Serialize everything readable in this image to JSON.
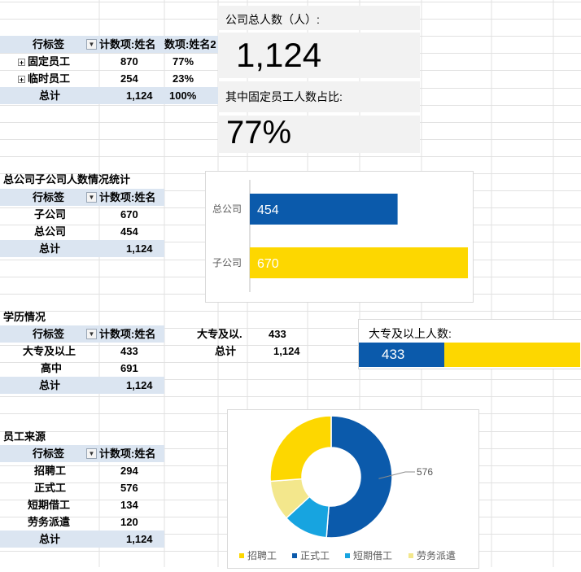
{
  "colors": {
    "blue": "#0b5aab",
    "yellow": "#fdd700",
    "sky": "#17a4e0",
    "paleyellow": "#f3e78c",
    "grid": "#e1e1e1"
  },
  "pivot1": {
    "headers": [
      "行标签",
      "计数项:姓名",
      "数项:姓名2"
    ],
    "rows": [
      [
        "固定员工",
        "870",
        "77%"
      ],
      [
        "临时员工",
        "254",
        "23%"
      ]
    ],
    "total": [
      "总计",
      "1,124",
      "100%"
    ]
  },
  "kpi": {
    "total_label": "公司总人数（人）:",
    "total_value": "1,124",
    "ratio_label": "其中固定员工人数占比:",
    "ratio_value": "77%"
  },
  "section2": {
    "title": "总公司子公司人数情况统计",
    "headers": [
      "行标签",
      "计数项:姓名"
    ],
    "rows": [
      [
        "子公司",
        "670"
      ],
      [
        "总公司",
        "454"
      ]
    ],
    "total": [
      "总计",
      "1,124"
    ]
  },
  "bar_chart": {
    "chart_data": {
      "type": "bar",
      "orientation": "horizontal",
      "categories": [
        "总公司",
        "子公司"
      ],
      "values": [
        454,
        670
      ],
      "colors": [
        "#0b5aab",
        "#fdd700"
      ],
      "xlim": [
        0,
        800
      ]
    }
  },
  "section3": {
    "title": "学历情况",
    "headers": [
      "行标签",
      "计数项:姓名"
    ],
    "rows": [
      [
        "大专及以上",
        "433"
      ],
      [
        "高中",
        "691"
      ]
    ],
    "total": [
      "总计",
      "1,124"
    ],
    "side": [
      [
        "大专及以.",
        "433"
      ],
      [
        "总计",
        "1,124"
      ]
    ]
  },
  "progress": {
    "label": "大专及以上人数:",
    "value": "433",
    "fraction": 0.385
  },
  "section4": {
    "title": "员工来源",
    "headers": [
      "行标签",
      "计数项:姓名"
    ],
    "rows": [
      [
        "招聘工",
        "294"
      ],
      [
        "正式工",
        "576"
      ],
      [
        "短期借工",
        "134"
      ],
      [
        "劳务派遣",
        "120"
      ]
    ],
    "total": [
      "总计",
      "1,124"
    ]
  },
  "donut_chart": {
    "chart_data": {
      "type": "pie",
      "hole": 0.48,
      "categories": [
        "招聘工",
        "正式工",
        "短期借工",
        "劳务派遣"
      ],
      "values": [
        294,
        576,
        134,
        120
      ],
      "order": [
        "正式工",
        "短期借工",
        "劳务派遣",
        "招聘工"
      ],
      "colors": {
        "招聘工": "#fdd700",
        "正式工": "#0b5aab",
        "短期借工": "#17a4e0",
        "劳务派遣": "#f3e78c"
      },
      "data_label": "576",
      "legend": "bottom"
    }
  }
}
